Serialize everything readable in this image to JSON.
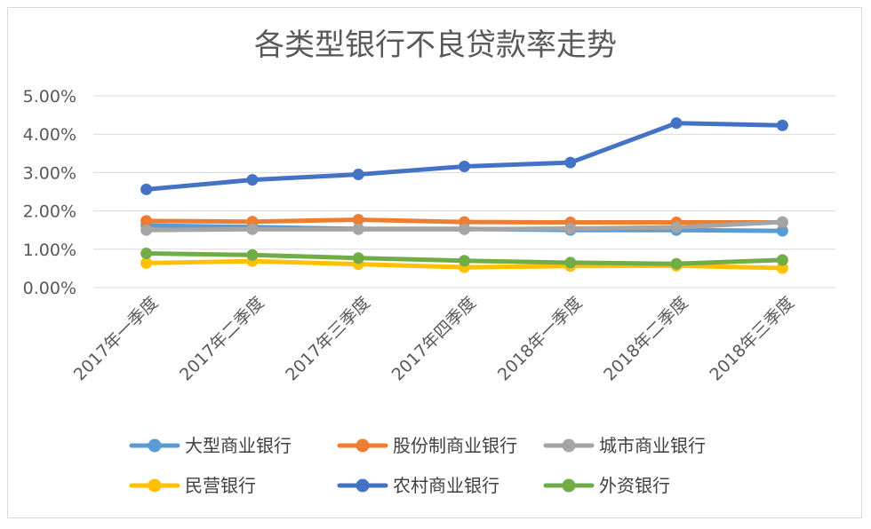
{
  "chart_data": {
    "type": "line",
    "title": "各类型银行不良贷款率走势",
    "categories": [
      "2017年一季度",
      "2017年二季度",
      "2017年三季度",
      "2017年四季度",
      "2018年一季度",
      "2018年二季度",
      "2018年三季度"
    ],
    "y_ticks": [
      "0.00%",
      "1.00%",
      "2.00%",
      "3.00%",
      "4.00%",
      "5.00%"
    ],
    "ylim": [
      0,
      5
    ],
    "grid": true,
    "legend_position": "bottom",
    "series": [
      {
        "name": "大型商业银行",
        "color": "#5b9bd5",
        "values": [
          1.62,
          1.58,
          1.53,
          1.53,
          1.5,
          1.5,
          1.48
        ]
      },
      {
        "name": "股份制商业银行",
        "color": "#ed7d31",
        "values": [
          1.74,
          1.72,
          1.77,
          1.71,
          1.7,
          1.7,
          1.7
        ]
      },
      {
        "name": "城市商业银行",
        "color": "#a5a5a5",
        "values": [
          1.5,
          1.52,
          1.52,
          1.52,
          1.54,
          1.57,
          1.71
        ]
      },
      {
        "name": "民营银行",
        "color": "#ffc000",
        "values": [
          0.64,
          0.69,
          0.61,
          0.53,
          0.56,
          0.57,
          0.51
        ]
      },
      {
        "name": "农村商业银行",
        "color": "#4472c4",
        "values": [
          2.56,
          2.81,
          2.95,
          3.16,
          3.26,
          4.29,
          4.23
        ]
      },
      {
        "name": "外资银行",
        "color": "#70ad47",
        "values": [
          0.89,
          0.85,
          0.77,
          0.7,
          0.65,
          0.62,
          0.72
        ]
      }
    ]
  }
}
